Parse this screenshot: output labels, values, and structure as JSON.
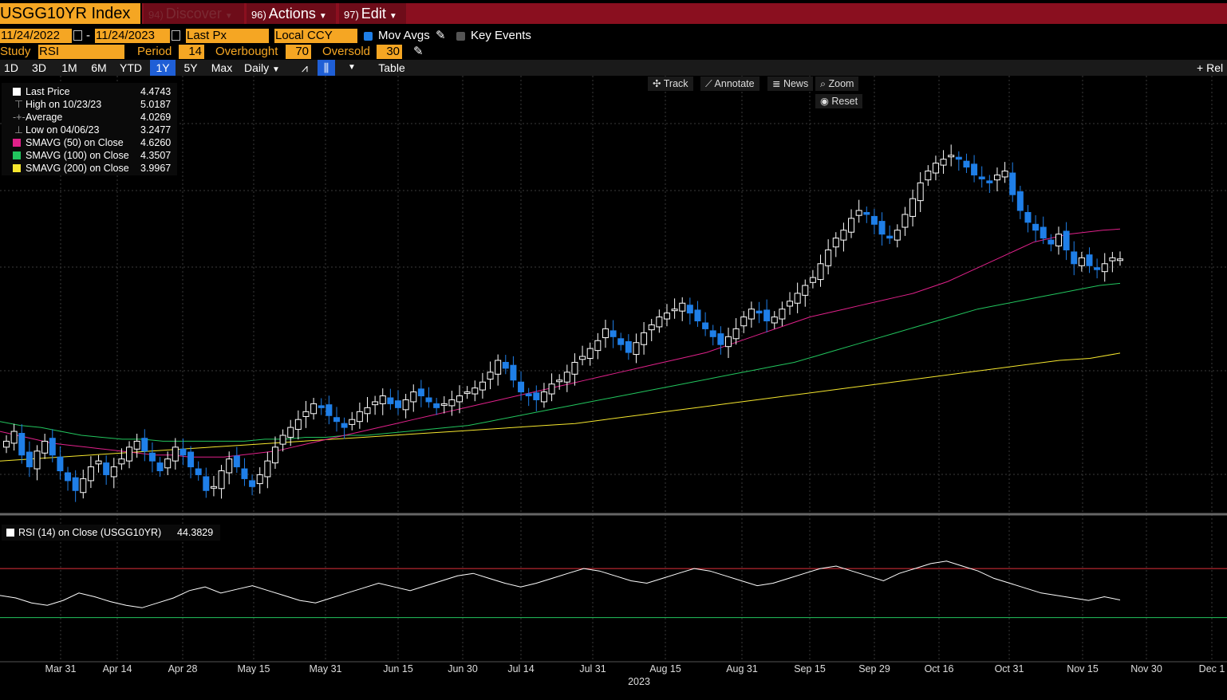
{
  "toolbar": {
    "ticker": "USGG10YR Index",
    "discover": {
      "num": "94)",
      "label": "Discover"
    },
    "actions": {
      "num": "96)",
      "label": "Actions"
    },
    "edit": {
      "num": "97)",
      "label": "Edit"
    }
  },
  "settings": {
    "start_date": "11/24/2022",
    "end_date": "11/24/2023",
    "separator": "-",
    "field": "Last Px",
    "currency": "Local CCY",
    "mov_avgs_label": "Mov Avgs",
    "key_events_label": "Key Events",
    "study_label": "Study",
    "study_value": "RSI",
    "period_label": "Period",
    "period_value": "14",
    "overbought_label": "Overbought",
    "overbought_value": "70",
    "oversold_label": "Oversold",
    "oversold_value": "30"
  },
  "tabs": [
    "1D",
    "3D",
    "1M",
    "6M",
    "YTD",
    "1Y",
    "5Y",
    "Max"
  ],
  "active_tab": "1Y",
  "frequency": "Daily",
  "table_label": "Table",
  "rel_label": "Rel",
  "tools": {
    "track": "Track",
    "annotate": "Annotate",
    "news": "News",
    "zoom": "Zoom",
    "reset": "Reset"
  },
  "legend": [
    {
      "label": "Last Price",
      "value": "4.4743",
      "color": "#ffffff"
    },
    {
      "label": "High on 10/23/23",
      "value": "5.0187",
      "color": ""
    },
    {
      "label": "Average",
      "value": "4.0269",
      "color": ""
    },
    {
      "label": "Low on 04/06/23",
      "value": "3.2477",
      "color": ""
    },
    {
      "label": "SMAVG (50)  on Close",
      "value": "4.6260",
      "color": "#e0218a"
    },
    {
      "label": "SMAVG (100)  on Close",
      "value": "4.3507",
      "color": "#22c55e"
    },
    {
      "label": "SMAVG (200)  on Close",
      "value": "3.9967",
      "color": "#f5e62e"
    }
  ],
  "rsi_legend": {
    "label": "RSI (14)  on Close (USGG10YR)",
    "value": "44.3829"
  },
  "colors": {
    "up": "#ffffff",
    "down": "#1f7fe8",
    "sma50": "#e0218a",
    "sma100": "#22c55e",
    "sma200": "#f5e62e",
    "overbought": "#e0303a",
    "oversold": "#22c55e",
    "rsi": "#ffffff"
  },
  "chart_data": {
    "type": "candlestick",
    "x_ticks": [
      "Mar 31",
      "Apr 14",
      "Apr 28",
      "May 15",
      "May 31",
      "Jun 15",
      "Jun 30",
      "Jul 14",
      "Jul 31",
      "Aug 15",
      "Aug 31",
      "Sep 15",
      "Sep 29",
      "Oct 16",
      "Oct 31",
      "Nov 15",
      "Nov 30",
      "Dec 1"
    ],
    "x_year": "2023",
    "ylim": [
      3.2,
      5.1
    ],
    "close_series": [
      3.55,
      3.6,
      3.48,
      3.42,
      3.5,
      3.55,
      3.48,
      3.4,
      3.35,
      3.3,
      3.36,
      3.42,
      3.45,
      3.38,
      3.42,
      3.46,
      3.52,
      3.55,
      3.5,
      3.45,
      3.4,
      3.46,
      3.52,
      3.48,
      3.42,
      3.38,
      3.3,
      3.32,
      3.4,
      3.46,
      3.42,
      3.36,
      3.32,
      3.38,
      3.45,
      3.52,
      3.58,
      3.62,
      3.66,
      3.7,
      3.74,
      3.72,
      3.68,
      3.65,
      3.62,
      3.66,
      3.7,
      3.72,
      3.75,
      3.78,
      3.74,
      3.72,
      3.76,
      3.8,
      3.78,
      3.75,
      3.72,
      3.74,
      3.76,
      3.78,
      3.8,
      3.82,
      3.85,
      3.9,
      3.96,
      3.92,
      3.86,
      3.8,
      3.78,
      3.76,
      3.8,
      3.84,
      3.86,
      3.9,
      3.95,
      3.98,
      4.02,
      4.06,
      4.12,
      4.08,
      4.04,
      4.0,
      4.05,
      4.1,
      4.14,
      4.18,
      4.2,
      4.22,
      4.25,
      4.2,
      4.16,
      4.12,
      4.08,
      4.04,
      4.08,
      4.12,
      4.18,
      4.22,
      4.2,
      4.16,
      4.18,
      4.22,
      4.26,
      4.3,
      4.34,
      4.38,
      4.45,
      4.52,
      4.58,
      4.62,
      4.68,
      4.72,
      4.7,
      4.65,
      4.6,
      4.58,
      4.62,
      4.7,
      4.78,
      4.86,
      4.92,
      4.96,
      4.98,
      5.0,
      4.98,
      4.94,
      4.9,
      4.88,
      4.86,
      4.9,
      4.92,
      4.8,
      4.72,
      4.66,
      4.62,
      4.58,
      4.55,
      4.6,
      4.52,
      4.45,
      4.48,
      4.44,
      4.42,
      4.45,
      4.48,
      4.4743
    ],
    "sma50": [
      3.6,
      3.58,
      3.56,
      3.54,
      3.53,
      3.52,
      3.51,
      3.5,
      3.49,
      3.48,
      3.48,
      3.47,
      3.47,
      3.47,
      3.48,
      3.49,
      3.5,
      3.52,
      3.54,
      3.56,
      3.58,
      3.6,
      3.62,
      3.64,
      3.66,
      3.68,
      3.7,
      3.72,
      3.74,
      3.76,
      3.78,
      3.8,
      3.82,
      3.84,
      3.86,
      3.88,
      3.9,
      3.92,
      3.94,
      3.96,
      3.98,
      4.0,
      4.03,
      4.06,
      4.09,
      4.12,
      4.15,
      4.18,
      4.2,
      4.22,
      4.24,
      4.26,
      4.28,
      4.3,
      4.33,
      4.36,
      4.4,
      4.44,
      4.48,
      4.52,
      4.56,
      4.58,
      4.6,
      4.61,
      4.62,
      4.626
    ],
    "sma100": [
      3.65,
      3.63,
      3.62,
      3.6,
      3.58,
      3.57,
      3.56,
      3.56,
      3.55,
      3.55,
      3.55,
      3.55,
      3.55,
      3.56,
      3.56,
      3.57,
      3.57,
      3.58,
      3.58,
      3.59,
      3.6,
      3.61,
      3.62,
      3.63,
      3.65,
      3.67,
      3.69,
      3.71,
      3.73,
      3.75,
      3.77,
      3.79,
      3.81,
      3.83,
      3.85,
      3.87,
      3.89,
      3.91,
      3.93,
      3.95,
      3.98,
      4.01,
      4.04,
      4.07,
      4.1,
      4.13,
      4.16,
      4.19,
      4.22,
      4.24,
      4.26,
      4.28,
      4.3,
      4.32,
      4.34,
      4.3507
    ],
    "sma200": [
      3.45,
      3.46,
      3.47,
      3.48,
      3.49,
      3.5,
      3.51,
      3.52,
      3.53,
      3.54,
      3.55,
      3.56,
      3.57,
      3.58,
      3.59,
      3.6,
      3.61,
      3.62,
      3.63,
      3.64,
      3.66,
      3.68,
      3.7,
      3.72,
      3.74,
      3.76,
      3.78,
      3.8,
      3.82,
      3.84,
      3.86,
      3.88,
      3.9,
      3.92,
      3.94,
      3.96,
      3.97,
      3.9967
    ],
    "rsi": [
      48,
      46,
      42,
      40,
      44,
      50,
      47,
      43,
      40,
      38,
      42,
      46,
      52,
      55,
      50,
      53,
      56,
      52,
      48,
      44,
      42,
      46,
      50,
      54,
      58,
      55,
      52,
      56,
      60,
      64,
      66,
      62,
      58,
      55,
      58,
      62,
      66,
      70,
      68,
      64,
      60,
      58,
      62,
      66,
      70,
      68,
      64,
      60,
      56,
      58,
      62,
      66,
      70,
      72,
      68,
      64,
      60,
      66,
      70,
      74,
      76,
      72,
      68,
      62,
      58,
      54,
      50,
      48,
      46,
      44,
      47,
      44.3829
    ],
    "rsi_overbought": 70,
    "rsi_oversold": 30
  }
}
